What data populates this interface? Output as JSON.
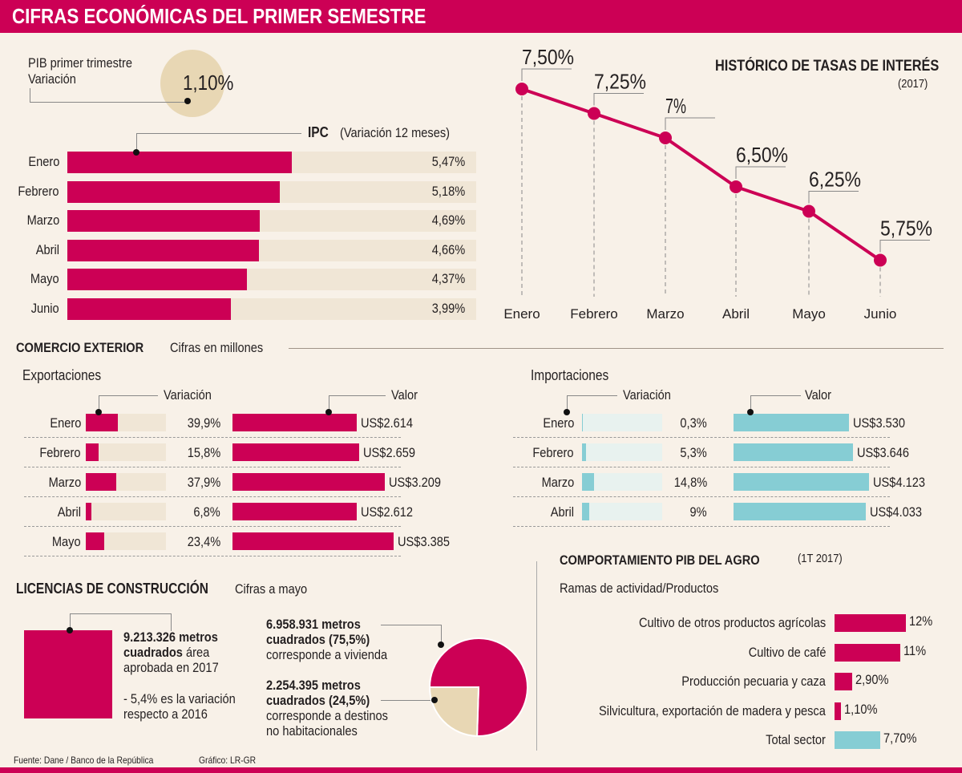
{
  "header": {
    "title": "CIFRAS ECONÓMICAS DEL PRIMER SEMESTRE"
  },
  "pib": {
    "label_line1": "PIB primer trimestre",
    "label_line2": "Variación",
    "value": "1,10%"
  },
  "ipc": {
    "title": "IPC",
    "subtitle": "(Variación 12 meses)",
    "rows": [
      {
        "month": "Enero",
        "value": 5.47,
        "label": "5,47%"
      },
      {
        "month": "Febrero",
        "value": 5.18,
        "label": "5,18%"
      },
      {
        "month": "Marzo",
        "value": 4.69,
        "label": "4,69%"
      },
      {
        "month": "Abril",
        "value": 4.66,
        "label": "4,66%"
      },
      {
        "month": "Mayo",
        "value": 4.37,
        "label": "4,37%"
      },
      {
        "month": "Junio",
        "value": 3.99,
        "label": "3,99%"
      }
    ]
  },
  "tasas": {
    "title": "HISTÓRICO DE TASAS DE INTERÉS",
    "subtitle": "(2017)"
  },
  "comercio": {
    "title": "COMERCIO EXTERIOR",
    "subtitle": "Cifras en millones",
    "variacion_label": "Variación",
    "valor_label": "Valor",
    "exportaciones": {
      "title": "Exportaciones",
      "rows": [
        {
          "month": "Enero",
          "var": 39.9,
          "var_label": "39,9%",
          "valor": 2614,
          "valor_label": "US$2.614"
        },
        {
          "month": "Febrero",
          "var": 15.8,
          "var_label": "15,8%",
          "valor": 2659,
          "valor_label": "US$2.659"
        },
        {
          "month": "Marzo",
          "var": 37.9,
          "var_label": "37,9%",
          "valor": 3209,
          "valor_label": "US$3.209"
        },
        {
          "month": "Abril",
          "var": 6.8,
          "var_label": "6,8%",
          "valor": 2612,
          "valor_label": "US$2.612"
        },
        {
          "month": "Mayo",
          "var": 23.4,
          "var_label": "23,4%",
          "valor": 3385,
          "valor_label": "US$3.385"
        }
      ]
    },
    "importaciones": {
      "title": "Importaciones",
      "rows": [
        {
          "month": "Enero",
          "var": 0.3,
          "var_label": "0,3%",
          "valor": 3530,
          "valor_label": "US$3.530"
        },
        {
          "month": "Febrero",
          "var": 5.3,
          "var_label": "5,3%",
          "valor": 3646,
          "valor_label": "US$3.646"
        },
        {
          "month": "Marzo",
          "var": 14.8,
          "var_label": "14,8%",
          "valor": 4123,
          "valor_label": "US$4.123"
        },
        {
          "month": "Abril",
          "var": 9,
          "var_label": "9%",
          "valor": 4033,
          "valor_label": "US$4.033"
        }
      ]
    }
  },
  "licencias": {
    "title": "LICENCIAS DE CONSTRUCCIÓN",
    "subtitle": "Cifras a mayo",
    "total_bold": "9.213.326 metros cuadrados",
    "total_rest": "área aprobada en 2017",
    "total_line1": "9.213.326 metros",
    "total_line2_bold": "cuadrados",
    "total_line2_rest": " área",
    "total_line3": "aprobada en 2017",
    "var_line1": "- 5,4% es la variación",
    "var_line2": "respecto a 2016",
    "vivienda_line1": "6.958.931 metros",
    "vivienda_line2": "cuadrados (75,5%)",
    "vivienda_line3": "corresponde a vivienda",
    "otros_line1": "2.254.395 metros",
    "otros_line2": "cuadrados (24,5%)",
    "otros_line3": "corresponde a destinos",
    "otros_line4": "no habitacionales"
  },
  "agro": {
    "title": "COMPORTAMIENTO PIB DEL AGRO",
    "subtitle": "(1T 2017)",
    "section_label": "Ramas de actividad/Productos"
  },
  "footer": {
    "source": "Fuente: Dane / Banco de la República",
    "credit": "Gráfico: LR-GR"
  },
  "colors": {
    "accent": "#cc0055",
    "beige": "#e8d7b4",
    "track": "#f0e6d6",
    "cyan": "#86cdd4",
    "background": "#f8f1e8"
  },
  "chart_data": [
    {
      "type": "bar",
      "title": "IPC (Variación 12 meses)",
      "categories": [
        "Enero",
        "Febrero",
        "Marzo",
        "Abril",
        "Mayo",
        "Junio"
      ],
      "values": [
        5.47,
        5.18,
        4.69,
        4.66,
        4.37,
        3.99
      ],
      "labels": [
        "5,47%",
        "5,18%",
        "4,69%",
        "4,66%",
        "4,37%",
        "3,99%"
      ],
      "orientation": "horizontal",
      "xlim": [
        0,
        10
      ]
    },
    {
      "type": "line",
      "title": "HISTÓRICO DE TASAS DE INTERÉS",
      "subtitle": "(2017)",
      "categories": [
        "Enero",
        "Febrero",
        "Marzo",
        "Abril",
        "Mayo",
        "Junio"
      ],
      "values": [
        7.5,
        7.25,
        7.0,
        6.5,
        6.25,
        5.75
      ],
      "labels": [
        "7,50%",
        "7,25%",
        "7%",
        "6,50%",
        "6,25%",
        "5,75%"
      ],
      "grid": false
    },
    {
      "type": "bar",
      "title": "Exportaciones",
      "categories": [
        "Enero",
        "Febrero",
        "Marzo",
        "Abril",
        "Mayo"
      ],
      "series": [
        {
          "name": "Variación",
          "values": [
            39.9,
            15.8,
            37.9,
            6.8,
            23.4
          ],
          "labels": [
            "39,9%",
            "15,8%",
            "37,9%",
            "6,8%",
            "23,4%"
          ]
        },
        {
          "name": "Valor",
          "values": [
            2614,
            2659,
            3209,
            2612,
            3385
          ],
          "labels": [
            "US$2.614",
            "US$2.659",
            "US$3.209",
            "US$2.612",
            "US$3.385"
          ]
        }
      ]
    },
    {
      "type": "bar",
      "title": "Importaciones",
      "categories": [
        "Enero",
        "Febrero",
        "Marzo",
        "Abril"
      ],
      "series": [
        {
          "name": "Variación",
          "values": [
            0.3,
            5.3,
            14.8,
            9
          ],
          "labels": [
            "0,3%",
            "5,3%",
            "14,8%",
            "9%"
          ]
        },
        {
          "name": "Valor",
          "values": [
            3530,
            3646,
            4123,
            4033
          ],
          "labels": [
            "US$3.530",
            "US$3.646",
            "US$4.123",
            "US$4.033"
          ]
        }
      ]
    },
    {
      "type": "pie",
      "title": "LICENCIAS DE CONSTRUCCIÓN",
      "categories": [
        "Vivienda",
        "Destinos no habitacionales"
      ],
      "values": [
        75.5,
        24.5
      ],
      "absolute": [
        6958931,
        2254395
      ]
    },
    {
      "type": "bar",
      "title": "COMPORTAMIENTO PIB DEL AGRO (1T 2017)",
      "categories": [
        "Cultivo de otros productos agrícolas",
        "Cultivo de café",
        "Producción pecuaria y caza",
        "Silvicultura, exportación de madera y pesca",
        "Total sector"
      ],
      "values": [
        12,
        11,
        2.9,
        1.1,
        7.7
      ],
      "labels": [
        "12%",
        "11%",
        "2,90%",
        "1,10%",
        "7,70%"
      ],
      "orientation": "horizontal"
    }
  ]
}
